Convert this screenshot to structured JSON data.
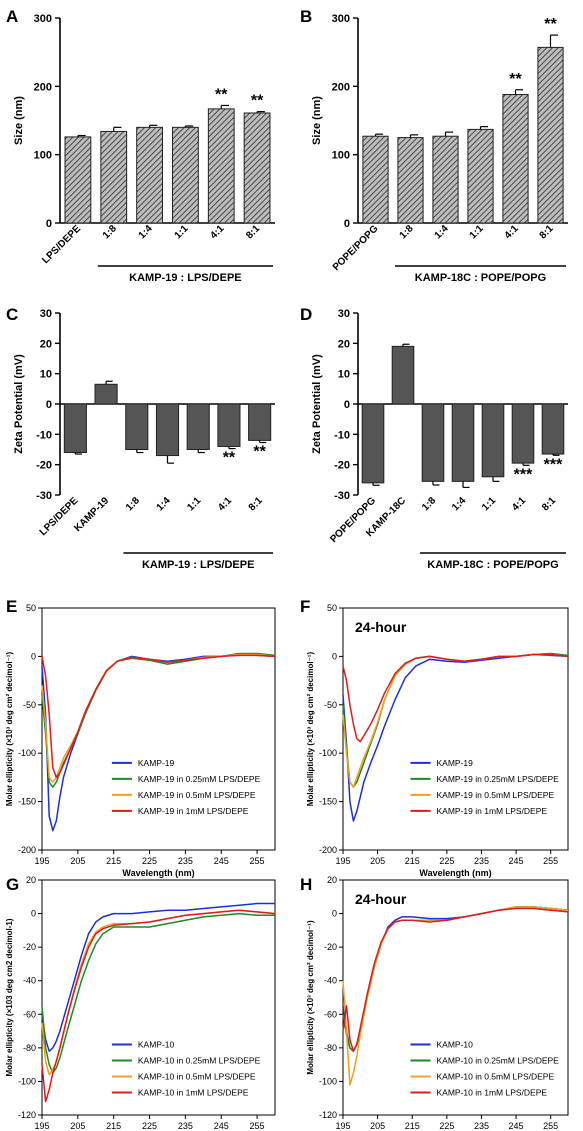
{
  "chart_data": [
    {
      "panel": "A",
      "type": "bar",
      "ylabel": "Size (nm)",
      "ylim": [
        0,
        300
      ],
      "yticks": [
        0,
        100,
        200,
        300
      ],
      "categories": [
        "LPS/DEPE",
        "1:8",
        "1:4",
        "1:1",
        "4:1",
        "8:1"
      ],
      "values": [
        126,
        134,
        140,
        140,
        167,
        161
      ],
      "errors": [
        2,
        6,
        3,
        2,
        5,
        2
      ],
      "significance": [
        "",
        "",
        "",
        "",
        "**",
        "**"
      ],
      "bracket_label": "KAMP-19 : LPS/DEPE",
      "bracket_range": [
        1,
        5
      ],
      "fill": "hatched-gray"
    },
    {
      "panel": "B",
      "type": "bar",
      "ylabel": "Size (nm)",
      "ylim": [
        0,
        300
      ],
      "yticks": [
        0,
        100,
        200,
        300
      ],
      "categories": [
        "POPE/POPG",
        "1:8",
        "1:4",
        "1:1",
        "4:1",
        "8:1"
      ],
      "values": [
        127,
        125,
        127,
        137,
        188,
        257
      ],
      "errors": [
        3,
        4,
        6,
        4,
        7,
        18
      ],
      "significance": [
        "",
        "",
        "",
        "",
        "**",
        "**"
      ],
      "bracket_label": "KAMP-18C : POPE/POPG",
      "bracket_range": [
        1,
        5
      ],
      "fill": "hatched-gray"
    },
    {
      "panel": "C",
      "type": "bar",
      "ylabel": "Zeta Potential (mV)",
      "ylim": [
        -30,
        30
      ],
      "yticks": [
        -30,
        -20,
        -10,
        0,
        10,
        20,
        30
      ],
      "categories": [
        "LPS/DEPE",
        "KAMP-19",
        "1:8",
        "1:4",
        "1:1",
        "4:1",
        "8:1"
      ],
      "values": [
        -16,
        6.5,
        -15,
        -17,
        -15,
        -14,
        -12
      ],
      "errors": [
        0.5,
        1,
        1,
        2.5,
        1,
        0.7,
        0.7
      ],
      "significance": [
        "",
        "",
        "",
        "",
        "",
        "**",
        "**"
      ],
      "bracket_label": "KAMP-19 : LPS/DEPE",
      "bracket_range": [
        2,
        6
      ],
      "fill": "#555555"
    },
    {
      "panel": "D",
      "type": "bar",
      "ylabel": "Zeta Potential (mV)",
      "ylim": [
        -30,
        30
      ],
      "yticks": [
        -30,
        -20,
        -10,
        0,
        10,
        20,
        30
      ],
      "categories": [
        "POPE/POPG",
        "KAMP-18C",
        "1:8",
        "1:4",
        "1:1",
        "4:1",
        "8:1"
      ],
      "values": [
        -26,
        19,
        -25.5,
        -25.5,
        -24,
        -19.5,
        -16.5
      ],
      "errors": [
        0.8,
        0.7,
        1.2,
        2,
        1.5,
        0.7,
        0.4
      ],
      "significance": [
        "",
        "",
        "",
        "",
        "",
        "***",
        "***"
      ],
      "bracket_label": "KAMP-18C : POPE/POPG",
      "bracket_range": [
        2,
        6
      ],
      "fill": "#555555"
    },
    {
      "panel": "E",
      "type": "line",
      "xlabel": "Wavelength (nm)",
      "ylabel": "Molar ellipticity (×10³ deg cm² decimol⁻¹)",
      "xlim": [
        195,
        260
      ],
      "ylim": [
        -200,
        50
      ],
      "xticks": [
        195,
        205,
        215,
        225,
        235,
        245,
        255
      ],
      "yticks": [
        -200,
        -150,
        -100,
        -50,
        0,
        50
      ],
      "subtitle": "",
      "series": [
        {
          "name": "KAMP-19",
          "color": "#1f2fd8",
          "x": [
            195,
            196,
            197,
            198,
            199,
            200,
            201,
            203,
            205,
            207,
            210,
            213,
            216,
            220,
            225,
            230,
            235,
            240,
            245,
            250,
            255,
            260
          ],
          "y": [
            -10,
            -60,
            -165,
            -180,
            -170,
            -145,
            -125,
            -100,
            -80,
            -60,
            -35,
            -15,
            -5,
            0,
            -3,
            -5,
            -3,
            0,
            0,
            2,
            1,
            0
          ]
        },
        {
          "name": "KAMP-19 in 0.25mM LPS/DEPE",
          "color": "#1f8a1f",
          "x": [
            195,
            196,
            197,
            198,
            199,
            200,
            201,
            203,
            205,
            207,
            210,
            213,
            216,
            220,
            225,
            230,
            235,
            240,
            245,
            250,
            255,
            260
          ],
          "y": [
            -40,
            -80,
            -130,
            -135,
            -130,
            -120,
            -110,
            -95,
            -80,
            -60,
            -35,
            -15,
            -5,
            -2,
            -4,
            -8,
            -5,
            -2,
            0,
            3,
            3,
            1
          ]
        },
        {
          "name": "KAMP-19 in 0.5mM LPS/DEPE",
          "color": "#f0a020",
          "x": [
            195,
            196,
            197,
            198,
            199,
            200,
            201,
            203,
            205,
            207,
            210,
            213,
            216,
            220,
            225,
            230,
            235,
            240,
            245,
            250,
            255,
            260
          ],
          "y": [
            -30,
            -70,
            -125,
            -130,
            -125,
            -115,
            -105,
            -92,
            -78,
            -58,
            -34,
            -14,
            -5,
            -1,
            -3,
            -6,
            -4,
            -1,
            0,
            2,
            2,
            0
          ]
        },
        {
          "name": "KAMP-19 in 1mM LPS/DEPE",
          "color": "#e01b1b",
          "x": [
            195,
            196,
            197,
            198,
            199,
            200,
            201,
            203,
            205,
            207,
            210,
            213,
            216,
            220,
            225,
            230,
            235,
            240,
            245,
            250,
            255,
            260
          ],
          "y": [
            0,
            -20,
            -60,
            -115,
            -125,
            -120,
            -112,
            -95,
            -78,
            -58,
            -34,
            -15,
            -5,
            -1,
            -3,
            -6,
            -4,
            -2,
            0,
            1,
            1,
            0
          ]
        }
      ]
    },
    {
      "panel": "F",
      "type": "line",
      "xlabel": "Wavelength (nm)",
      "ylabel": "Molar ellipticity (×10³ deg cm² decimol⁻¹)",
      "xlim": [
        195,
        260
      ],
      "ylim": [
        -200,
        50
      ],
      "xticks": [
        195,
        205,
        215,
        225,
        235,
        245,
        255
      ],
      "yticks": [
        -200,
        -150,
        -100,
        -50,
        0,
        50
      ],
      "subtitle": "24-hour",
      "series": [
        {
          "name": "KAMP-19",
          "color": "#1f2fd8",
          "x": [
            195,
            196,
            197,
            198,
            199,
            200,
            201,
            203,
            205,
            207,
            210,
            213,
            216,
            220,
            225,
            230,
            235,
            240,
            245,
            250,
            255,
            260
          ],
          "y": [
            -40,
            -90,
            -150,
            -170,
            -160,
            -145,
            -130,
            -110,
            -92,
            -72,
            -45,
            -22,
            -10,
            -3,
            -5,
            -6,
            -4,
            -2,
            0,
            2,
            1,
            0
          ]
        },
        {
          "name": "KAMP-19 in 0.25mM LPS/DEPE",
          "color": "#1f8a1f",
          "x": [
            195,
            196,
            197,
            198,
            199,
            200,
            201,
            203,
            205,
            207,
            210,
            213,
            216,
            220,
            225,
            230,
            235,
            240,
            245,
            250,
            255,
            260
          ],
          "y": [
            -50,
            -95,
            -130,
            -135,
            -130,
            -120,
            -110,
            -90,
            -70,
            -45,
            -20,
            -8,
            -2,
            0,
            -3,
            -5,
            -3,
            0,
            0,
            2,
            3,
            1
          ]
        },
        {
          "name": "KAMP-19 in 0.5mM LPS/DEPE",
          "color": "#f0a020",
          "x": [
            195,
            196,
            197,
            198,
            199,
            200,
            201,
            203,
            205,
            207,
            210,
            213,
            216,
            220,
            225,
            230,
            235,
            240,
            245,
            250,
            255,
            260
          ],
          "y": [
            -60,
            -100,
            -130,
            -135,
            -125,
            -115,
            -105,
            -88,
            -68,
            -45,
            -20,
            -8,
            -2,
            0,
            -3,
            -5,
            -3,
            0,
            0,
            2,
            2,
            0
          ]
        },
        {
          "name": "KAMP-19 in 1mM LPS/DEPE",
          "color": "#e01b1b",
          "x": [
            195,
            196,
            197,
            198,
            199,
            200,
            201,
            203,
            205,
            207,
            210,
            213,
            216,
            220,
            225,
            230,
            235,
            240,
            245,
            250,
            255,
            260
          ],
          "y": [
            -10,
            -25,
            -50,
            -70,
            -85,
            -88,
            -82,
            -70,
            -55,
            -38,
            -18,
            -7,
            -2,
            0,
            -3,
            -5,
            -3,
            0,
            0,
            2,
            2,
            0
          ]
        }
      ]
    },
    {
      "panel": "G",
      "type": "line",
      "xlabel": "Wavelength (nm)",
      "ylabel": "Molar ellipticity (×103 deg cm2 decimol-1)",
      "xlim": [
        195,
        260
      ],
      "ylim": [
        -120,
        20
      ],
      "xticks": [
        195,
        205,
        215,
        225,
        235,
        245,
        255
      ],
      "yticks": [
        -120,
        -100,
        -80,
        -60,
        -40,
        -20,
        0,
        20
      ],
      "subtitle": "",
      "series": [
        {
          "name": "KAMP-10",
          "color": "#1f2fd8",
          "x": [
            195,
            196,
            197,
            198,
            199,
            200,
            202,
            204,
            206,
            208,
            210,
            212,
            215,
            220,
            225,
            230,
            235,
            240,
            245,
            250,
            255,
            260
          ],
          "y": [
            -60,
            -75,
            -82,
            -80,
            -76,
            -70,
            -55,
            -40,
            -25,
            -12,
            -5,
            -2,
            0,
            0,
            1,
            2,
            2,
            3,
            4,
            5,
            6,
            6
          ]
        },
        {
          "name": "KAMP-10 in 0.25mM LPS/DEPE",
          "color": "#1f8a1f",
          "x": [
            195,
            196,
            197,
            198,
            199,
            200,
            202,
            204,
            206,
            208,
            210,
            212,
            215,
            220,
            225,
            230,
            235,
            240,
            245,
            250,
            255,
            260
          ],
          "y": [
            -55,
            -80,
            -90,
            -95,
            -92,
            -86,
            -70,
            -55,
            -40,
            -28,
            -18,
            -12,
            -8,
            -8,
            -8,
            -6,
            -4,
            -2,
            -1,
            0,
            -1,
            -1
          ]
        },
        {
          "name": "KAMP-10 in 0.5mM LPS/DEPE",
          "color": "#f0a020",
          "x": [
            195,
            196,
            197,
            198,
            199,
            200,
            202,
            204,
            206,
            208,
            210,
            212,
            215,
            220,
            225,
            230,
            235,
            240,
            245,
            250,
            255,
            260
          ],
          "y": [
            -65,
            -88,
            -96,
            -93,
            -88,
            -80,
            -62,
            -45,
            -30,
            -18,
            -11,
            -8,
            -6,
            -6,
            -5,
            -3,
            -1,
            0,
            1,
            2,
            1,
            0
          ]
        },
        {
          "name": "KAMP-10 in 1mM LPS/DEPE",
          "color": "#e01b1b",
          "x": [
            195,
            196,
            197,
            198,
            199,
            200,
            202,
            204,
            206,
            208,
            210,
            212,
            215,
            220,
            225,
            230,
            235,
            240,
            245,
            250,
            255,
            260
          ],
          "y": [
            -90,
            -112,
            -105,
            -95,
            -88,
            -80,
            -62,
            -46,
            -32,
            -20,
            -12,
            -9,
            -7,
            -6,
            -5,
            -3,
            -1,
            0,
            1,
            2,
            1,
            0
          ]
        }
      ]
    },
    {
      "panel": "H",
      "type": "line",
      "xlabel": "Wavelength (nm)",
      "ylabel": "Molar ellipticity (×10³ deg cm² decimol⁻¹)",
      "xlim": [
        195,
        260
      ],
      "ylim": [
        -120,
        20
      ],
      "xticks": [
        195,
        205,
        215,
        225,
        235,
        245,
        255
      ],
      "yticks": [
        -120,
        -100,
        -80,
        -60,
        -40,
        -20,
        0,
        20
      ],
      "subtitle": "24-hour",
      "series": [
        {
          "name": "KAMP-10",
          "color": "#1f2fd8",
          "x": [
            195,
            196,
            197,
            198,
            199,
            200,
            202,
            204,
            206,
            208,
            210,
            212,
            215,
            220,
            225,
            230,
            235,
            240,
            245,
            250,
            255,
            260
          ],
          "y": [
            -55,
            -70,
            -80,
            -82,
            -78,
            -70,
            -50,
            -32,
            -18,
            -8,
            -4,
            -2,
            -2,
            -3,
            -3,
            -2,
            0,
            2,
            4,
            4,
            3,
            2
          ]
        },
        {
          "name": "KAMP-10 in 0.25mM LPS/DEPE",
          "color": "#1f8a1f",
          "x": [
            195,
            196,
            197,
            198,
            199,
            200,
            202,
            204,
            206,
            208,
            210,
            212,
            215,
            220,
            225,
            230,
            235,
            240,
            245,
            250,
            255,
            260
          ],
          "y": [
            -60,
            -72,
            -80,
            -82,
            -78,
            -70,
            -50,
            -32,
            -18,
            -9,
            -5,
            -4,
            -4,
            -4,
            -4,
            -2,
            0,
            2,
            4,
            4,
            3,
            2
          ]
        },
        {
          "name": "KAMP-10 in 0.5mM LPS/DEPE",
          "color": "#f0a020",
          "x": [
            195,
            196,
            197,
            198,
            199,
            200,
            202,
            204,
            206,
            208,
            210,
            212,
            215,
            220,
            225,
            230,
            235,
            240,
            245,
            250,
            255,
            260
          ],
          "y": [
            -40,
            -70,
            -102,
            -95,
            -85,
            -72,
            -50,
            -32,
            -18,
            -9,
            -5,
            -4,
            -4,
            -4,
            -4,
            -2,
            0,
            2,
            4,
            4,
            3,
            2
          ]
        },
        {
          "name": "KAMP-10 in 1mM LPS/DEPE",
          "color": "#e01b1b",
          "x": [
            195,
            196,
            197,
            198,
            199,
            200,
            202,
            204,
            206,
            208,
            210,
            212,
            215,
            220,
            225,
            230,
            235,
            240,
            245,
            250,
            255,
            260
          ],
          "y": [
            -70,
            -55,
            -75,
            -82,
            -78,
            -68,
            -48,
            -30,
            -17,
            -9,
            -5,
            -4,
            -4,
            -5,
            -4,
            -2,
            0,
            2,
            3,
            3,
            2,
            1
          ]
        }
      ]
    }
  ]
}
